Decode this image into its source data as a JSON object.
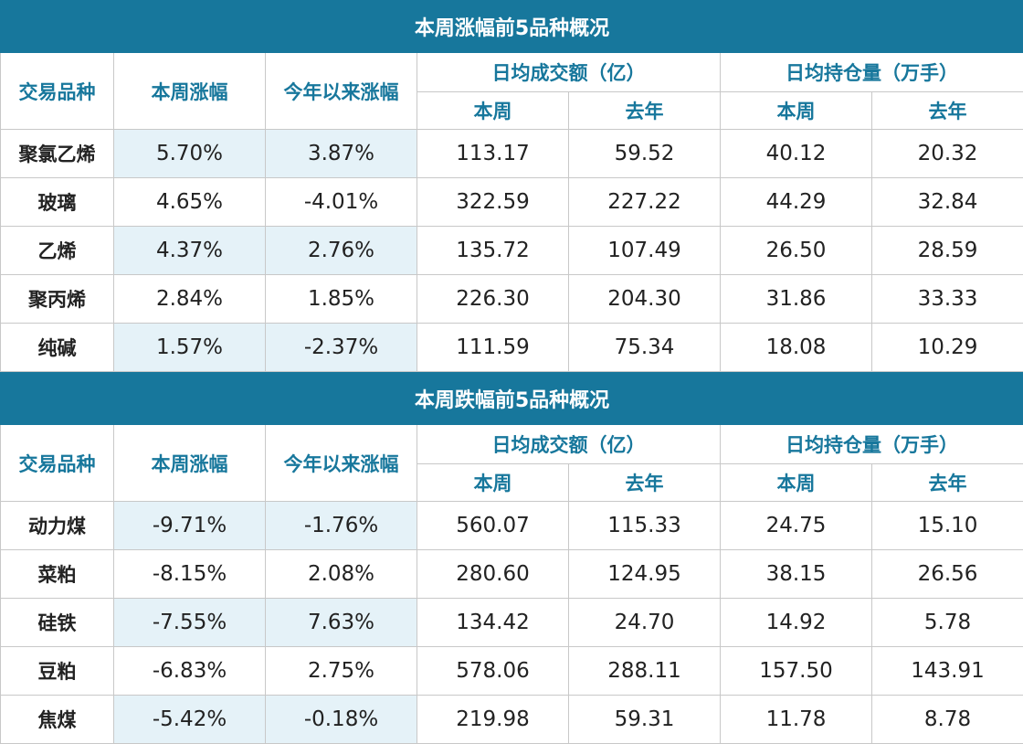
{
  "colors": {
    "header_bg": "#17779c",
    "header_text": "#17779c",
    "shade": "#e5f2f8"
  },
  "headers": {
    "variety": "交易品种",
    "weekly_change": "本周涨幅",
    "ytd_change": "今年以来涨幅",
    "avg_volume": "日均成交额（亿）",
    "avg_open_interest": "日均持仓量（万手）",
    "this_week": "本周",
    "last_year": "去年"
  },
  "tables": [
    {
      "title": "本周涨幅前5品种概况",
      "rows": [
        [
          "聚氯乙烯",
          "5.70%",
          "3.87%",
          "113.17",
          "59.52",
          "40.12",
          "20.32"
        ],
        [
          "玻璃",
          "4.65%",
          "-4.01%",
          "322.59",
          "227.22",
          "44.29",
          "32.84"
        ],
        [
          "乙烯",
          "4.37%",
          "2.76%",
          "135.72",
          "107.49",
          "26.50",
          "28.59"
        ],
        [
          "聚丙烯",
          "2.84%",
          "1.85%",
          "226.30",
          "204.30",
          "31.86",
          "33.33"
        ],
        [
          "纯碱",
          "1.57%",
          "-2.37%",
          "111.59",
          "75.34",
          "18.08",
          "10.29"
        ]
      ]
    },
    {
      "title": "本周跌幅前5品种概况",
      "rows": [
        [
          "动力煤",
          "-9.71%",
          "-1.76%",
          "560.07",
          "115.33",
          "24.75",
          "15.10"
        ],
        [
          "菜粕",
          "-8.15%",
          "2.08%",
          "280.60",
          "124.95",
          "38.15",
          "26.56"
        ],
        [
          "硅铁",
          "-7.55%",
          "7.63%",
          "134.42",
          "24.70",
          "14.92",
          "5.78"
        ],
        [
          "豆粕",
          "-6.83%",
          "2.75%",
          "578.06",
          "288.11",
          "157.50",
          "143.91"
        ],
        [
          "焦煤",
          "-5.42%",
          "-0.18%",
          "219.98",
          "59.31",
          "11.78",
          "8.78"
        ]
      ]
    }
  ]
}
